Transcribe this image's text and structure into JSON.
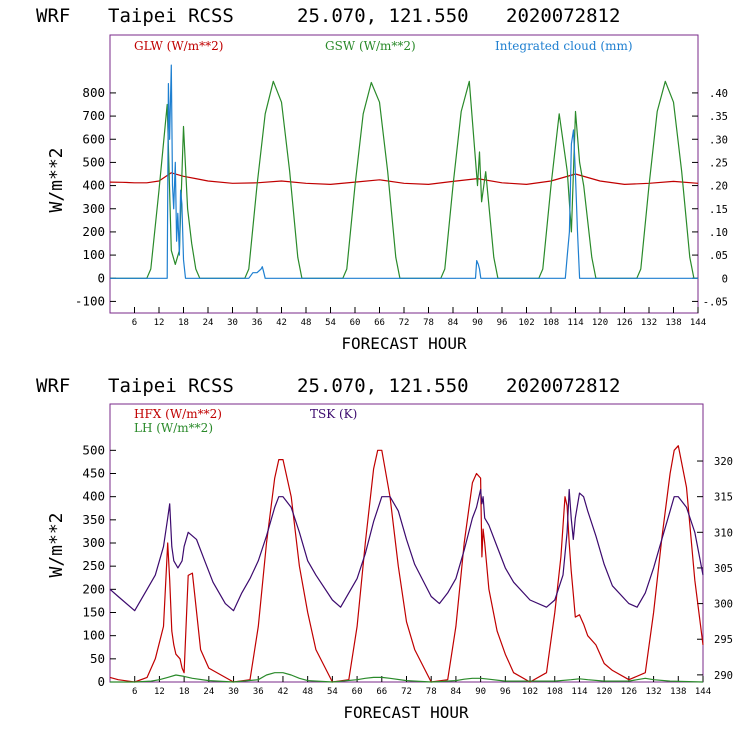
{
  "colors": {
    "red": "#c00000",
    "green": "#2a8a2a",
    "blue": "#1e7fd0",
    "purple": "#3c0a6e",
    "frame": "#7a2a8a"
  },
  "chart_data": [
    {
      "type": "line",
      "header": {
        "model": "WRF",
        "station": "Taipei RCSS",
        "coords": "25.070, 121.550",
        "init": "2020072812"
      },
      "xlabel": "FORECAST HOUR",
      "ylabel": "W/m**2",
      "xlim": [
        0,
        144
      ],
      "ylim": [
        -150,
        1050
      ],
      "y_ticks": [
        -100,
        0,
        100,
        200,
        300,
        400,
        500,
        600,
        700,
        800
      ],
      "x_ticks": [
        6,
        12,
        18,
        24,
        30,
        36,
        42,
        48,
        54,
        60,
        66,
        72,
        78,
        84,
        90,
        96,
        102,
        108,
        114,
        120,
        126,
        132,
        138,
        144
      ],
      "right_axis": {
        "label": "Integrated cloud (mm)",
        "ylim": [
          -0.075,
          0.525
        ],
        "ticks": [
          -0.05,
          0,
          0.05,
          0.1,
          0.15,
          0.2,
          0.25,
          0.3,
          0.35,
          0.4
        ],
        "tick_labels": [
          "-.05",
          "0",
          ".05",
          ".10",
          ".15",
          ".20",
          ".25",
          ".30",
          ".35",
          ".40"
        ]
      },
      "series": [
        {
          "name": "GLW (W/m**2)",
          "color": "red",
          "axis": "left",
          "x": [
            0,
            3,
            6,
            9,
            12,
            15,
            18,
            21,
            24,
            30,
            36,
            42,
            48,
            54,
            60,
            66,
            72,
            78,
            84,
            90,
            96,
            102,
            108,
            114,
            120,
            126,
            132,
            138,
            144
          ],
          "y": [
            415,
            414,
            412,
            412,
            420,
            455,
            440,
            430,
            420,
            410,
            412,
            420,
            410,
            405,
            415,
            425,
            410,
            405,
            418,
            430,
            412,
            405,
            420,
            450,
            420,
            405,
            410,
            418,
            410
          ]
        },
        {
          "name": "GSW (W/m**2)",
          "color": "green",
          "axis": "left",
          "x": [
            0,
            9,
            10,
            12,
            14,
            15,
            16,
            17,
            18,
            19,
            20,
            21,
            22,
            24,
            33,
            34,
            36,
            38,
            40,
            42,
            44,
            46,
            47,
            57,
            58,
            60,
            62,
            64,
            66,
            68,
            70,
            71,
            81,
            82,
            84,
            86,
            88,
            90,
            90.5,
            91,
            92,
            94,
            95,
            105,
            106,
            108,
            110,
            112,
            113,
            114,
            115,
            116,
            118,
            119,
            129,
            130,
            132,
            134,
            136,
            138,
            140,
            142,
            143,
            144
          ],
          "y": [
            0,
            0,
            40,
            380,
            750,
            120,
            60,
            120,
            655,
            300,
            150,
            40,
            0,
            0,
            0,
            40,
            400,
            710,
            850,
            760,
            460,
            90,
            0,
            0,
            40,
            400,
            710,
            845,
            760,
            460,
            90,
            0,
            0,
            40,
            400,
            720,
            850,
            400,
            545,
            330,
            460,
            90,
            0,
            0,
            40,
            400,
            710,
            460,
            200,
            720,
            500,
            400,
            90,
            0,
            0,
            40,
            400,
            720,
            850,
            760,
            460,
            90,
            0,
            0
          ]
        },
        {
          "name": "Integrated cloud (mm)",
          "color": "blue",
          "axis": "right",
          "x": [
            0,
            14,
            14.3,
            14.6,
            15,
            15.3,
            15.6,
            16,
            16.3,
            16.6,
            17,
            17.3,
            17.6,
            18,
            18.5,
            19,
            34,
            35,
            36,
            37,
            37.3,
            37.6,
            38,
            89.5,
            89.8,
            90.2,
            90.5,
            90.8,
            111.5,
            112,
            112.5,
            113,
            113.5,
            114,
            114.5,
            115,
            144
          ],
          "y": [
            0,
            0,
            0.42,
            0.3,
            0.46,
            0.2,
            0.15,
            0.25,
            0.08,
            0.14,
            0.05,
            0.19,
            0.16,
            0.04,
            0,
            0,
            0,
            0.012,
            0.012,
            0.02,
            0.025,
            0.015,
            0,
            0,
            0.038,
            0.03,
            0.02,
            0,
            0,
            0.05,
            0.1,
            0.29,
            0.32,
            0.22,
            0.1,
            0,
            0
          ]
        }
      ]
    },
    {
      "type": "line",
      "header": {
        "model": "WRF",
        "station": "Taipei RCSS",
        "coords": "25.070, 121.550",
        "init": "2020072812"
      },
      "xlabel": "FORECAST HOUR",
      "ylabel": "W/m**2",
      "xlim": [
        0,
        144
      ],
      "ylim": [
        0,
        600
      ],
      "y_ticks": [
        0,
        50,
        100,
        150,
        200,
        250,
        300,
        350,
        400,
        450,
        500
      ],
      "x_ticks": [
        6,
        12,
        18,
        24,
        30,
        36,
        42,
        48,
        54,
        60,
        66,
        72,
        78,
        84,
        90,
        96,
        102,
        108,
        114,
        120,
        126,
        132,
        138,
        144
      ],
      "right_axis": {
        "label": "TSK (K)",
        "ylim": [
          289,
          328
        ],
        "ticks": [
          290,
          295,
          300,
          305,
          310,
          315,
          320
        ],
        "tick_labels": [
          "290",
          "295",
          "300",
          "305",
          "310",
          "315",
          "320"
        ]
      },
      "series": [
        {
          "name": "HFX (W/m**2)",
          "color": "red",
          "axis": "left",
          "x": [
            0,
            2,
            6,
            9,
            11,
            13,
            14,
            14.5,
            15,
            15.5,
            16,
            17,
            17.5,
            18,
            19,
            20,
            22,
            24,
            30,
            34,
            36,
            38,
            40,
            41,
            42,
            44,
            46,
            48,
            50,
            54,
            58,
            60,
            62,
            64,
            65,
            66,
            68,
            70,
            72,
            74,
            78,
            82,
            84,
            86,
            88,
            89,
            90,
            90.3,
            90.6,
            91,
            92,
            94,
            96,
            98,
            102,
            106,
            108,
            109.5,
            110.5,
            111,
            111.5,
            112,
            112.5,
            113,
            114,
            114.5,
            115,
            116,
            118,
            120,
            122,
            126,
            130,
            132,
            134,
            136,
            137,
            138,
            140,
            142,
            144
          ],
          "y": [
            10,
            5,
            0,
            10,
            50,
            120,
            300,
            220,
            110,
            80,
            60,
            50,
            30,
            20,
            230,
            235,
            70,
            30,
            0,
            5,
            120,
            300,
            440,
            480,
            480,
            400,
            250,
            150,
            70,
            0,
            5,
            120,
            300,
            460,
            500,
            500,
            400,
            250,
            130,
            70,
            0,
            5,
            120,
            300,
            430,
            450,
            440,
            270,
            330,
            300,
            200,
            110,
            60,
            20,
            0,
            20,
            150,
            270,
            400,
            380,
            300,
            240,
            190,
            140,
            145,
            135,
            125,
            100,
            80,
            40,
            25,
            5,
            20,
            150,
            310,
            450,
            500,
            510,
            420,
            220,
            80
          ]
        },
        {
          "name": "LH (W/m**2)",
          "color": "green",
          "axis": "left",
          "x": [
            0,
            6,
            10,
            12,
            14,
            16,
            18,
            20,
            24,
            30,
            36,
            38,
            40,
            42,
            44,
            46,
            48,
            54,
            60,
            62,
            64,
            66,
            68,
            72,
            78,
            84,
            86,
            88,
            90,
            92,
            96,
            108,
            112,
            114,
            116,
            120,
            126,
            128,
            130,
            132,
            136,
            144
          ],
          "y": [
            0,
            0,
            2,
            5,
            10,
            15,
            12,
            8,
            3,
            0,
            5,
            15,
            20,
            20,
            15,
            8,
            3,
            0,
            5,
            8,
            10,
            10,
            8,
            3,
            0,
            3,
            6,
            8,
            8,
            6,
            2,
            2,
            5,
            7,
            5,
            2,
            2,
            5,
            8,
            5,
            2,
            0
          ]
        },
        {
          "name": "TSK (K)",
          "color": "purple",
          "axis": "right",
          "x": [
            0,
            2,
            6,
            9,
            11,
            13,
            14,
            14.5,
            15,
            15.5,
            16,
            16.5,
            17,
            17.5,
            18,
            19,
            21,
            23,
            25,
            28,
            30,
            32,
            34,
            36,
            38,
            40,
            41,
            42,
            44,
            46,
            48,
            50,
            54,
            56,
            58,
            60,
            62,
            64,
            66,
            68,
            70,
            72,
            74,
            78,
            80,
            82,
            84,
            86,
            88,
            89,
            90,
            90.3,
            90.6,
            91,
            92,
            94,
            96,
            98,
            102,
            106,
            108,
            110,
            111,
            111.5,
            112,
            112.5,
            113,
            114,
            115,
            116,
            118,
            120,
            122,
            126,
            128,
            130,
            132,
            134,
            136,
            137,
            138,
            140,
            142,
            144
          ],
          "y": [
            302,
            301,
            299,
            302,
            304,
            308,
            312,
            314,
            308,
            306,
            305.5,
            305,
            305.5,
            306,
            308,
            310,
            309,
            306,
            303,
            300,
            299,
            301.5,
            303.5,
            306,
            309.5,
            313.5,
            315,
            315,
            313.5,
            310,
            306,
            304,
            300.5,
            299.5,
            301.5,
            303.5,
            307,
            311.5,
            315,
            315,
            313,
            309,
            305.5,
            301,
            300,
            301.5,
            303.5,
            307.5,
            312,
            313.5,
            316,
            314,
            315,
            312,
            311,
            308,
            305,
            303,
            300.5,
            299.5,
            300.5,
            304,
            310,
            316,
            312,
            309,
            312,
            315.5,
            315,
            313,
            309.5,
            305.5,
            302.5,
            300,
            299.5,
            301.5,
            305,
            309,
            313,
            315,
            315,
            313.5,
            310,
            304
          ]
        }
      ]
    }
  ]
}
